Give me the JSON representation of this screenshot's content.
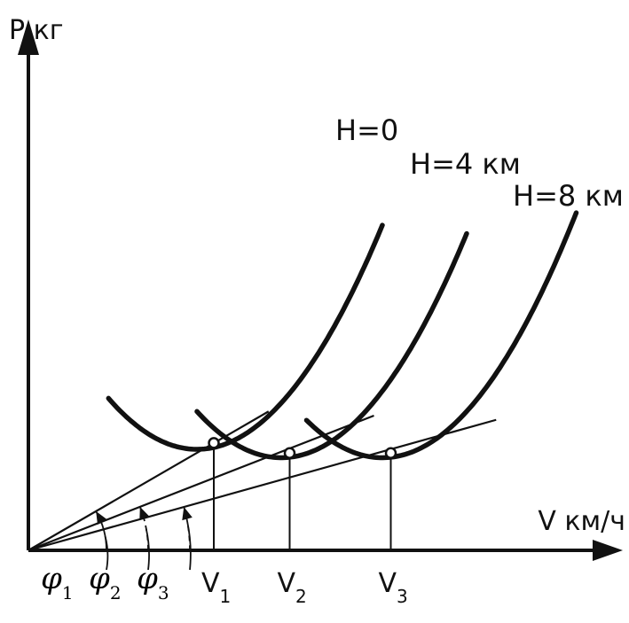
{
  "chart_data": {
    "type": "line",
    "title": "",
    "ylabel": "P кг",
    "xlabel": "V км/ч",
    "grid": false,
    "legend": "none",
    "xlim": [
      0,
      7
    ],
    "ylim": [
      0,
      6.5
    ],
    "series": [
      {
        "name": "H=0",
        "vertex_x": 2.0,
        "vertex_y": 1.2,
        "x_start": 0.95,
        "x_end": 4.2,
        "curvature": 0.55
      },
      {
        "name": "H=4 км",
        "vertex_x": 3.0,
        "vertex_y": 1.1,
        "x_start": 2.0,
        "x_end": 5.2,
        "curvature": 0.55
      },
      {
        "name": "H=8 км",
        "vertex_x": 4.2,
        "vertex_y": 1.1,
        "x_start": 3.3,
        "x_end": 6.5,
        "curvature": 0.55
      }
    ],
    "tangent_lines": [
      {
        "from": [
          0,
          0
        ],
        "to": [
          2.85,
          1.65
        ]
      },
      {
        "from": [
          0,
          0
        ],
        "to": [
          4.1,
          1.6
        ]
      },
      {
        "from": [
          0,
          0
        ],
        "to": [
          5.55,
          1.55
        ]
      }
    ],
    "points": [
      {
        "x": 2.2,
        "y": 1.275,
        "label": "V",
        "sub": "1"
      },
      {
        "x": 3.1,
        "y": 1.155,
        "label": "V",
        "sub": "2"
      },
      {
        "x": 4.3,
        "y": 1.155,
        "label": "V",
        "sub": "3"
      }
    ],
    "angles": [
      {
        "label": "φ",
        "sub": "1"
      },
      {
        "label": "φ",
        "sub": "2"
      },
      {
        "label": "φ",
        "sub": "3"
      }
    ]
  }
}
